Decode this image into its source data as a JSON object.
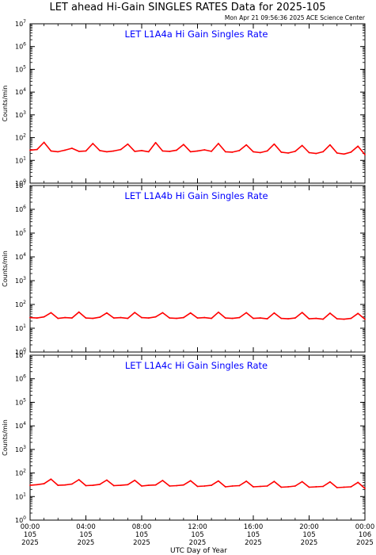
{
  "title": "LET ahead Hi-Gain SINGLES RATES Data for 2025-105",
  "timestamp": "Mon Apr 21 09:56:36 2025 ACE Science Center",
  "colors": {
    "trace": "#ff0000",
    "panel_title": "#0000ff",
    "axes": "#000000"
  },
  "chart_data": [
    {
      "type": "line",
      "title": "LET L1A4a Hi Gain Singles Rate",
      "ylabel": "Counts/min",
      "yscale": "log",
      "ylim": [
        1,
        10000000
      ],
      "ytick_labels": [
        {
          "base": "10",
          "exp": "0"
        },
        {
          "base": "10",
          "exp": "1"
        },
        {
          "base": "10",
          "exp": "2"
        },
        {
          "base": "10",
          "exp": "3"
        },
        {
          "base": "10",
          "exp": "4"
        },
        {
          "base": "10",
          "exp": "5"
        },
        {
          "base": "10",
          "exp": "6"
        },
        {
          "base": "10",
          "exp": "7"
        }
      ],
      "xlim": [
        0,
        24
      ],
      "x_hours": [
        0,
        0.5,
        1,
        1.5,
        2,
        2.5,
        3,
        3.5,
        4,
        4.5,
        5,
        5.5,
        6,
        6.5,
        7,
        7.5,
        8,
        8.5,
        9,
        9.5,
        10,
        10.5,
        11,
        11.5,
        12,
        12.5,
        13,
        13.5,
        14,
        14.5,
        15,
        15.5,
        16,
        16.5,
        17,
        17.5,
        18,
        18.5,
        19,
        19.5,
        20,
        20.5,
        21,
        21.5,
        22,
        22.5,
        23,
        23.5,
        24
      ],
      "series": [
        {
          "values": [
            28,
            30,
            62,
            26,
            24,
            28,
            34,
            25,
            26,
            55,
            27,
            24,
            26,
            30,
            52,
            25,
            27,
            24,
            60,
            26,
            25,
            28,
            50,
            24,
            26,
            29,
            25,
            55,
            24,
            23,
            27,
            48,
            24,
            22,
            26,
            52,
            23,
            21,
            25,
            45,
            22,
            20,
            24,
            48,
            21,
            19,
            23,
            42,
            18
          ]
        }
      ]
    },
    {
      "type": "line",
      "title": "LET L1A4b Hi Gain Singles Rate",
      "ylabel": "Counts/min",
      "yscale": "log",
      "ylim": [
        1,
        10000000
      ],
      "ytick_labels": [
        {
          "base": "10",
          "exp": "0"
        },
        {
          "base": "10",
          "exp": "1"
        },
        {
          "base": "10",
          "exp": "2"
        },
        {
          "base": "10",
          "exp": "3"
        },
        {
          "base": "10",
          "exp": "4"
        },
        {
          "base": "10",
          "exp": "5"
        },
        {
          "base": "10",
          "exp": "6"
        },
        {
          "base": "10",
          "exp": "7"
        }
      ],
      "xlim": [
        0,
        24
      ],
      "x_hours": [
        0,
        0.5,
        1,
        1.5,
        2,
        2.5,
        3,
        3.5,
        4,
        4.5,
        5,
        5.5,
        6,
        6.5,
        7,
        7.5,
        8,
        8.5,
        9,
        9.5,
        10,
        10.5,
        11,
        11.5,
        12,
        12.5,
        13,
        13.5,
        14,
        14.5,
        15,
        15.5,
        16,
        16.5,
        17,
        17.5,
        18,
        18.5,
        19,
        19.5,
        20,
        20.5,
        21,
        21.5,
        22,
        22.5,
        23,
        23.5,
        24
      ],
      "series": [
        {
          "values": [
            28,
            27,
            30,
            45,
            26,
            28,
            27,
            48,
            27,
            26,
            29,
            44,
            27,
            28,
            26,
            46,
            28,
            27,
            30,
            45,
            27,
            26,
            28,
            44,
            27,
            28,
            26,
            47,
            27,
            26,
            28,
            45,
            26,
            27,
            25,
            44,
            26,
            25,
            27,
            46,
            25,
            26,
            24,
            43,
            25,
            24,
            26,
            42,
            24
          ]
        }
      ]
    },
    {
      "type": "line",
      "title": "LET L1A4c Hi Gain Singles Rate",
      "ylabel": "Counts/min",
      "yscale": "log",
      "ylim": [
        1,
        10000000
      ],
      "ytick_labels": [
        {
          "base": "10",
          "exp": "0"
        },
        {
          "base": "10",
          "exp": "1"
        },
        {
          "base": "10",
          "exp": "2"
        },
        {
          "base": "10",
          "exp": "3"
        },
        {
          "base": "10",
          "exp": "4"
        },
        {
          "base": "10",
          "exp": "5"
        },
        {
          "base": "10",
          "exp": "6"
        },
        {
          "base": "10",
          "exp": "7"
        }
      ],
      "xlim": [
        0,
        24
      ],
      "x_hours": [
        0,
        0.5,
        1,
        1.5,
        2,
        2.5,
        3,
        3.5,
        4,
        4.5,
        5,
        5.5,
        6,
        6.5,
        7,
        7.5,
        8,
        8.5,
        9,
        9.5,
        10,
        10.5,
        11,
        11.5,
        12,
        12.5,
        13,
        13.5,
        14,
        14.5,
        15,
        15.5,
        16,
        16.5,
        17,
        17.5,
        18,
        18.5,
        19,
        19.5,
        20,
        20.5,
        21,
        21.5,
        22,
        22.5,
        23,
        23.5,
        24
      ],
      "series": [
        {
          "values": [
            30,
            32,
            35,
            55,
            30,
            31,
            34,
            52,
            29,
            30,
            33,
            50,
            29,
            30,
            32,
            49,
            28,
            30,
            31,
            48,
            28,
            29,
            31,
            47,
            27,
            28,
            30,
            46,
            26,
            28,
            29,
            45,
            26,
            27,
            28,
            44,
            25,
            26,
            28,
            43,
            25,
            26,
            27,
            42,
            24,
            25,
            26,
            40,
            22
          ]
        }
      ]
    }
  ],
  "x_axis": {
    "label": "UTC Day of Year",
    "ticks": [
      {
        "time": "00:00",
        "day": "105",
        "year": "2025",
        "hour": 0
      },
      {
        "time": "04:00",
        "day": "105",
        "year": "2025",
        "hour": 4
      },
      {
        "time": "08:00",
        "day": "105",
        "year": "2025",
        "hour": 8
      },
      {
        "time": "12:00",
        "day": "105",
        "year": "2025",
        "hour": 12
      },
      {
        "time": "16:00",
        "day": "105",
        "year": "2025",
        "hour": 16
      },
      {
        "time": "20:00",
        "day": "105",
        "year": "2025",
        "hour": 20
      },
      {
        "time": "00:00",
        "day": "106",
        "year": "2025",
        "hour": 24
      }
    ]
  }
}
